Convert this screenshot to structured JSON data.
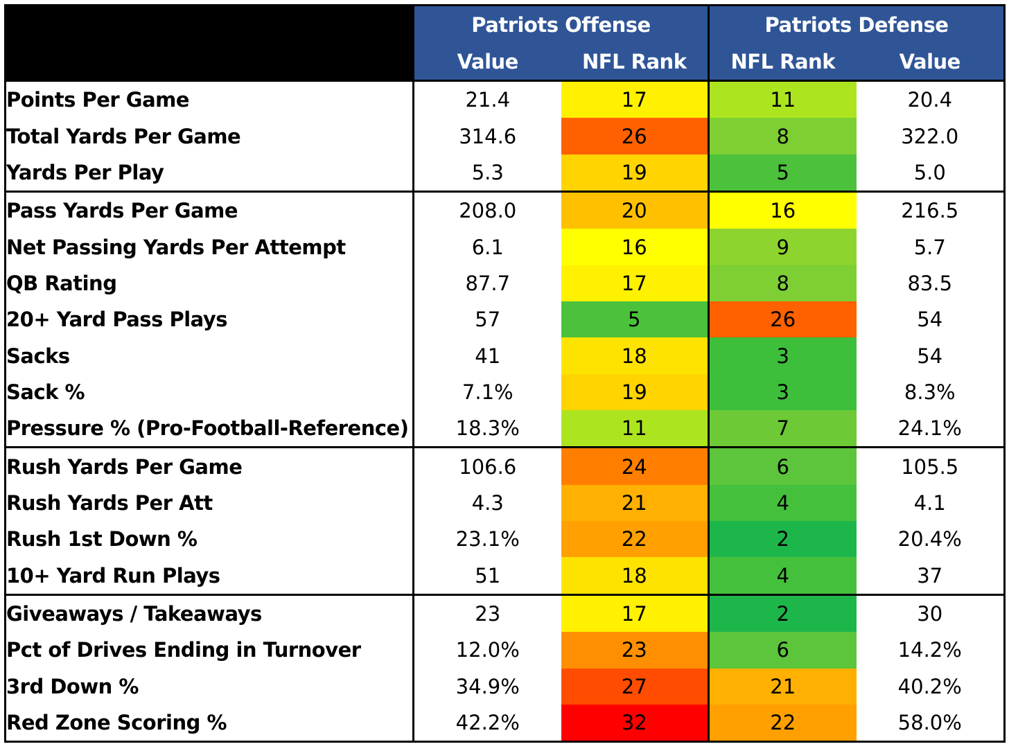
{
  "chart_data": {
    "type": "table",
    "column_groups": [
      {
        "name": "Patriots Offense",
        "columns": [
          "Value",
          "NFL Rank"
        ]
      },
      {
        "name": "Patriots Defense",
        "columns": [
          "NFL Rank",
          "Value"
        ]
      }
    ],
    "rows": [
      {
        "label": "Points Per Game",
        "off_value": "21.4",
        "off_rank": 17,
        "def_rank": 11,
        "def_value": "20.4",
        "group_start": true
      },
      {
        "label": "Total Yards Per Game",
        "off_value": "314.6",
        "off_rank": 26,
        "def_rank": 8,
        "def_value": "322.0"
      },
      {
        "label": "Yards Per Play",
        "off_value": "5.3",
        "off_rank": 19,
        "def_rank": 5,
        "def_value": "5.0"
      },
      {
        "label": "Pass Yards Per Game",
        "off_value": "208.0",
        "off_rank": 20,
        "def_rank": 16,
        "def_value": "216.5",
        "group_start": true
      },
      {
        "label": "Net Passing Yards Per Attempt",
        "off_value": "6.1",
        "off_rank": 16,
        "def_rank": 9,
        "def_value": "5.7"
      },
      {
        "label": "QB Rating",
        "off_value": "87.7",
        "off_rank": 17,
        "def_rank": 8,
        "def_value": "83.5"
      },
      {
        "label": "20+ Yard Pass Plays",
        "off_value": "57",
        "off_rank": 5,
        "def_rank": 26,
        "def_value": "54"
      },
      {
        "label": "Sacks",
        "off_value": "41",
        "off_rank": 18,
        "def_rank": 3,
        "def_value": "54"
      },
      {
        "label": "Sack %",
        "off_value": "7.1%",
        "off_rank": 19,
        "def_rank": 3,
        "def_value": "8.3%"
      },
      {
        "label": "Pressure % (Pro-Football-Reference)",
        "off_value": "18.3%",
        "off_rank": 11,
        "def_rank": 7,
        "def_value": "24.1%"
      },
      {
        "label": "Rush Yards Per Game",
        "off_value": "106.6",
        "off_rank": 24,
        "def_rank": 6,
        "def_value": "105.5",
        "group_start": true
      },
      {
        "label": "Rush Yards Per Att",
        "off_value": "4.3",
        "off_rank": 21,
        "def_rank": 4,
        "def_value": "4.1"
      },
      {
        "label": "Rush 1st Down %",
        "off_value": "23.1%",
        "off_rank": 22,
        "def_rank": 2,
        "def_value": "20.4%"
      },
      {
        "label": "10+ Yard Run Plays",
        "off_value": "51",
        "off_rank": 18,
        "def_rank": 4,
        "def_value": "37"
      },
      {
        "label": "Giveaways / Takeaways",
        "off_value": "23",
        "off_rank": 17,
        "def_rank": 2,
        "def_value": "30",
        "group_start": true
      },
      {
        "label": "Pct of Drives Ending in Turnover",
        "off_value": "12.0%",
        "off_rank": 23,
        "def_rank": 6,
        "def_value": "14.2%"
      },
      {
        "label": "3rd Down %",
        "off_value": "34.9%",
        "off_rank": 27,
        "def_rank": 21,
        "def_value": "40.2%"
      },
      {
        "label": "Red Zone Scoring %",
        "off_value": "42.2%",
        "off_rank": 32,
        "def_rank": 22,
        "def_value": "58.0%"
      }
    ],
    "rank_colors": {
      "2": "#1db64b",
      "3": "#3dbf3c",
      "4": "#45c03c",
      "5": "#4cc13b",
      "6": "#5cc53b",
      "7": "#6dca36",
      "8": "#7dcf33",
      "9": "#8dd42e",
      "11": "#ace51f",
      "16": "#ffff00",
      "17": "#fff100",
      "18": "#ffe300",
      "19": "#ffd400",
      "20": "#ffc000",
      "21": "#ffb000",
      "22": "#ffa000",
      "23": "#ff8f00",
      "24": "#ff7e00",
      "26": "#ff6000",
      "27": "#ff4c00",
      "32": "#ff0000"
    },
    "header_color": "#2f5597"
  }
}
